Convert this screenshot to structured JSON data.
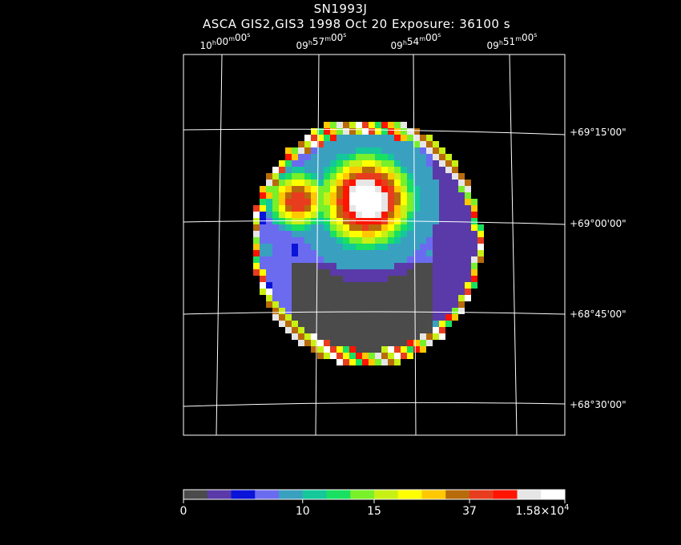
{
  "header": {
    "title": "SN1993J",
    "subtitle": "ASCA GIS2,GIS3    1998 Oct 20    Exposure: 36100 s"
  },
  "chart_data": {
    "type": "heatmap",
    "title": "SN1993J",
    "subtitle": "ASCA GIS2,GIS3    1998 Oct 20    Exposure: 36100 s",
    "exposure_s": 36100,
    "date": "1998 Oct 20",
    "instrument": "ASCA GIS2,GIS3",
    "ra_ticks": [
      {
        "h": "10",
        "m": "00",
        "s": "0"
      },
      {
        "h": "09",
        "m": "57",
        "s": "0"
      },
      {
        "h": "09",
        "m": "54",
        "s": "0"
      },
      {
        "h": "09",
        "m": "51",
        "s": "0"
      }
    ],
    "dec_ticks": [
      {
        "sign": "+",
        "d": "69",
        "m": "15",
        "s": "00"
      },
      {
        "sign": "+",
        "d": "69",
        "m": "00",
        "s": "00"
      },
      {
        "sign": "+",
        "d": "68",
        "m": "45",
        "s": "00"
      },
      {
        "sign": "+",
        "d": "68",
        "m": "30",
        "s": "00"
      }
    ],
    "colorbar": {
      "colors": [
        "#4b4b4b",
        "#5a3aa8",
        "#0a14d8",
        "#6b6bf0",
        "#3aa0c0",
        "#14c89a",
        "#19e060",
        "#78f02a",
        "#c8f014",
        "#ffff00",
        "#ffc800",
        "#b86b0a",
        "#e83c1e",
        "#ff1400",
        "#e6e6e6",
        "#ffffff"
      ],
      "tick_labels": [
        {
          "text": "0",
          "base": "",
          "exp": ""
        },
        {
          "text": "10",
          "base": "",
          "exp": ""
        },
        {
          "text": "15",
          "base": "",
          "exp": ""
        },
        {
          "text": "37",
          "base": "",
          "exp": ""
        },
        {
          "text": "",
          "base": "1.58×10",
          "exp": "4"
        }
      ],
      "tick_boundaries": [
        0,
        5,
        8,
        12,
        16
      ]
    },
    "sources": [
      {
        "name": "bright source",
        "ra_frac": 0.48,
        "dec_frac": 0.47,
        "level": 15
      },
      {
        "name": "secondary source",
        "ra_frac": 0.27,
        "dec_frac": 0.48,
        "level": 12
      }
    ]
  }
}
